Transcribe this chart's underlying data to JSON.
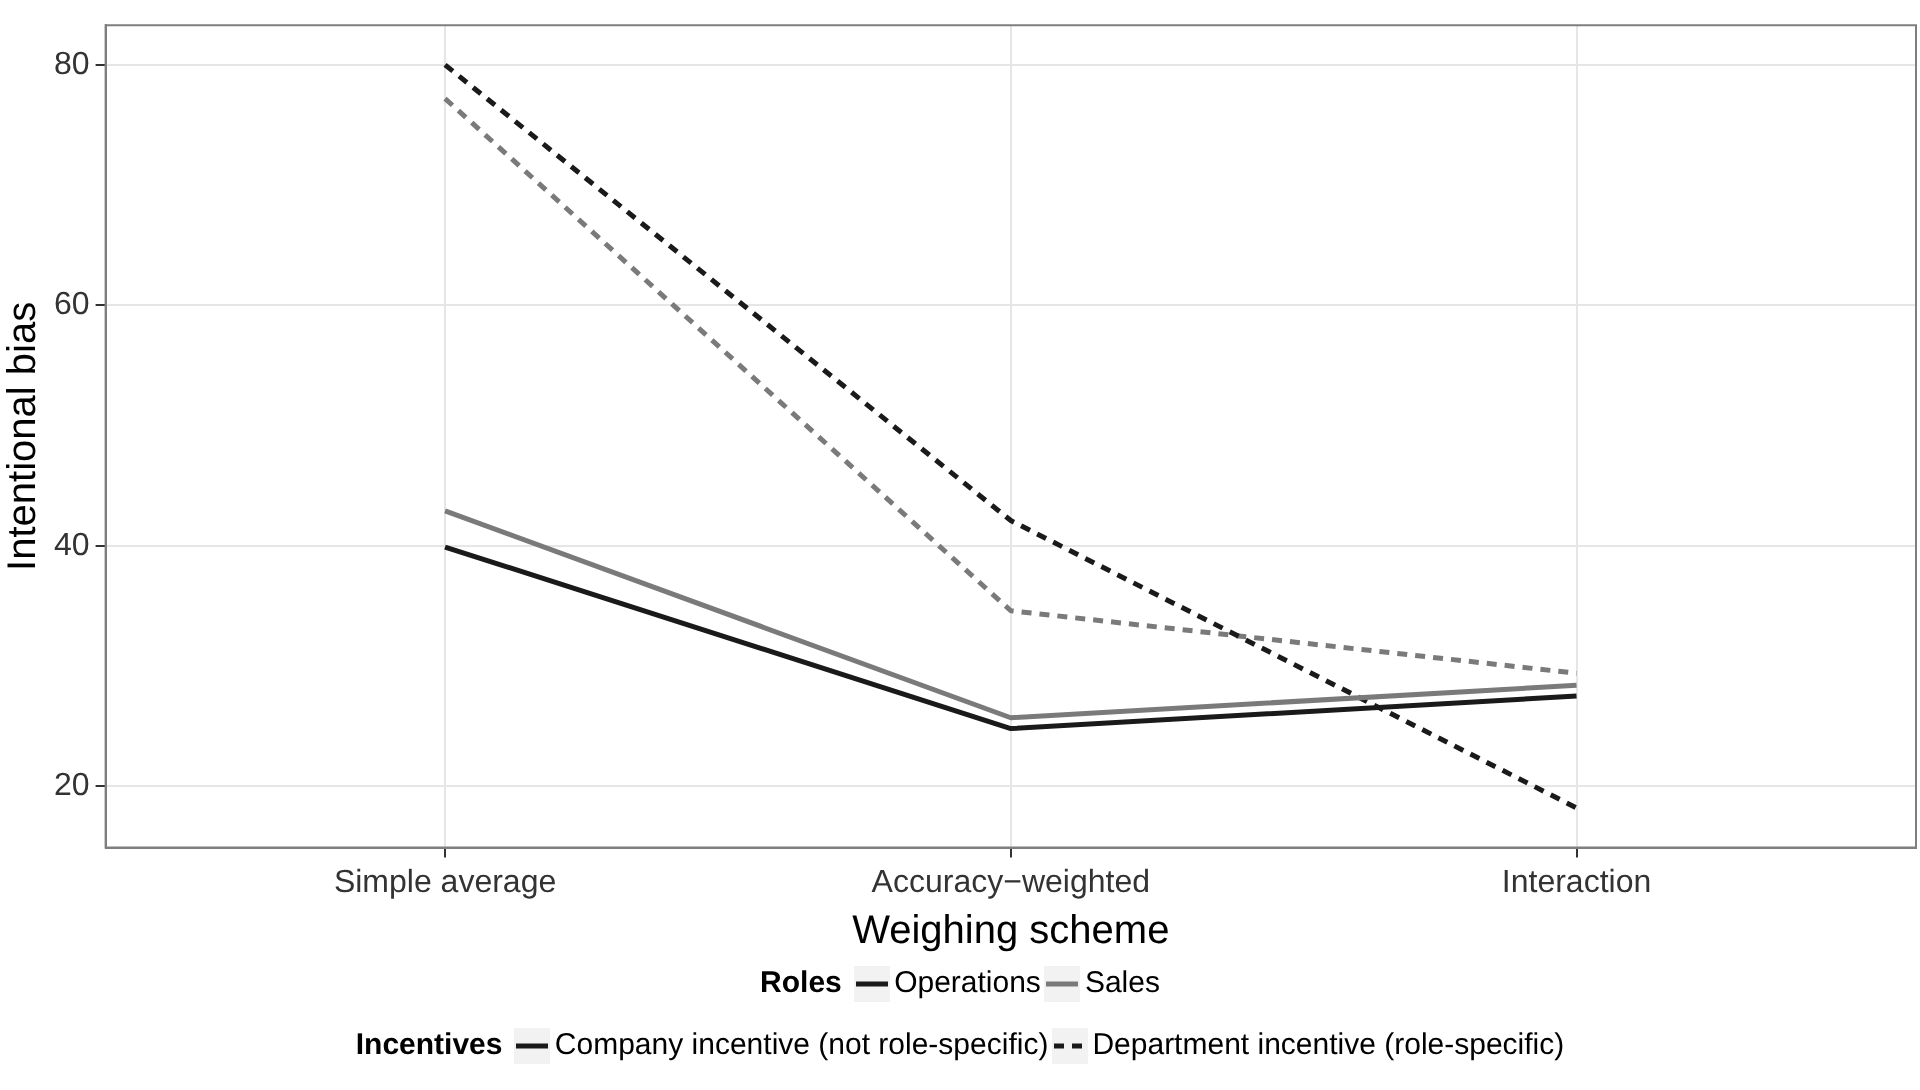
{
  "chart_data": {
    "type": "line",
    "xlabel": "Weighing scheme",
    "ylabel": "Intentional bias",
    "categories": [
      "Simple average",
      "Accuracy−weighted",
      "Interaction"
    ],
    "series": [
      {
        "name": "Operations",
        "color": "#1a1a1a",
        "line_style": "solid",
        "values": [
          39.9,
          24.8,
          27.5
        ]
      },
      {
        "name": "Sales",
        "color": "#7a7a7a",
        "line_style": "solid",
        "values": [
          42.9,
          25.7,
          28.4
        ]
      },
      {
        "color": "#1a1a1a",
        "line_style": "dashed",
        "values": [
          80,
          42.1,
          18.2
        ]
      },
      {
        "color": "#7a7a7a",
        "line_style": "dashed",
        "values": [
          77.2,
          34.6,
          29.4
        ]
      }
    ],
    "ylim": [
      14.9,
      83.3
    ],
    "yticks": [
      20,
      40,
      60,
      80
    ],
    "grid": true,
    "legend": "bottom",
    "legend_title": "Roles",
    "annotations": [
      "Incentives",
      "Company incentive (not role-specific)",
      "Department incentive (role-specific)"
    ]
  }
}
